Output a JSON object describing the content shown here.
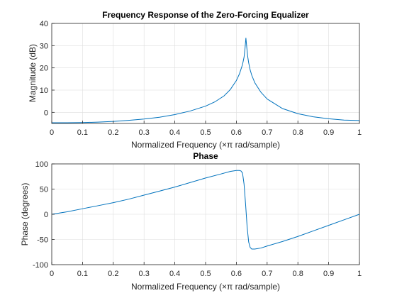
{
  "line_color": "#0072bd",
  "chart_data": [
    {
      "type": "line",
      "title": "Frequency Response of the Zero-Forcing Equalizer",
      "xlabel": "Normalized Frequency  (×π rad/sample)",
      "ylabel": "Magnitude (dB)",
      "xlim": [
        0,
        1
      ],
      "ylim": [
        -5,
        40
      ],
      "xticks": [
        0,
        0.1,
        0.2,
        0.3,
        0.4,
        0.5,
        0.6,
        0.7,
        0.8,
        0.9,
        1
      ],
      "xtick_labels": [
        "0",
        "0.1",
        "0.2",
        "0.3",
        "0.4",
        "0.5",
        "0.6",
        "0.7",
        "0.8",
        "0.9",
        "1"
      ],
      "yticks": [
        0,
        10,
        20,
        30,
        40
      ],
      "ytick_labels": [
        "0",
        "10",
        "20",
        "30",
        "40"
      ],
      "grid": true,
      "x": [
        0,
        0.05,
        0.1,
        0.15,
        0.2,
        0.25,
        0.3,
        0.35,
        0.4,
        0.45,
        0.5,
        0.53,
        0.56,
        0.58,
        0.6,
        0.61,
        0.62,
        0.625,
        0.628,
        0.631,
        0.634,
        0.637,
        0.64,
        0.645,
        0.65,
        0.66,
        0.68,
        0.7,
        0.75,
        0.8,
        0.85,
        0.9,
        0.95,
        1
      ],
      "series": [
        {
          "values": [
            -4.7,
            -4.7,
            -4.6,
            -4.4,
            -4.1,
            -3.6,
            -3.0,
            -2.2,
            -1.0,
            0.6,
            2.8,
            4.7,
            7.4,
            10.2,
            14.3,
            17.3,
            21.5,
            24.8,
            28.5,
            33.5,
            29.0,
            25.0,
            22.3,
            19.0,
            16.7,
            13.3,
            9.0,
            6.0,
            1.7,
            -0.6,
            -2.0,
            -2.9,
            -3.5,
            -3.7
          ]
        }
      ]
    },
    {
      "type": "line",
      "title": "Phase",
      "xlabel": "Normalized Frequency  (×π rad/sample)",
      "ylabel": "Phase (degrees)",
      "xlim": [
        0,
        1
      ],
      "ylim": [
        -100,
        100
      ],
      "xticks": [
        0,
        0.1,
        0.2,
        0.3,
        0.4,
        0.5,
        0.6,
        0.7,
        0.8,
        0.9,
        1
      ],
      "xtick_labels": [
        "0",
        "0.1",
        "0.2",
        "0.3",
        "0.4",
        "0.5",
        "0.6",
        "0.7",
        "0.8",
        "0.9",
        "1"
      ],
      "yticks": [
        -100,
        -50,
        0,
        50,
        100
      ],
      "ytick_labels": [
        "-100",
        "-50",
        "0",
        "50",
        "100"
      ],
      "grid": true,
      "x": [
        0,
        0.05,
        0.1,
        0.15,
        0.2,
        0.25,
        0.3,
        0.35,
        0.4,
        0.45,
        0.5,
        0.55,
        0.58,
        0.6,
        0.61,
        0.615,
        0.62,
        0.625,
        0.63,
        0.635,
        0.64,
        0.645,
        0.65,
        0.66,
        0.68,
        0.7,
        0.75,
        0.8,
        0.85,
        0.9,
        0.95,
        1
      ],
      "series": [
        {
          "values": [
            0,
            5,
            11,
            17,
            23,
            30,
            38,
            46,
            54,
            63,
            72,
            80,
            85,
            87,
            87,
            86,
            82,
            60,
            20,
            -25,
            -55,
            -66,
            -69,
            -69,
            -67,
            -63,
            -54,
            -44,
            -33,
            -22,
            -11,
            0
          ]
        }
      ]
    }
  ]
}
